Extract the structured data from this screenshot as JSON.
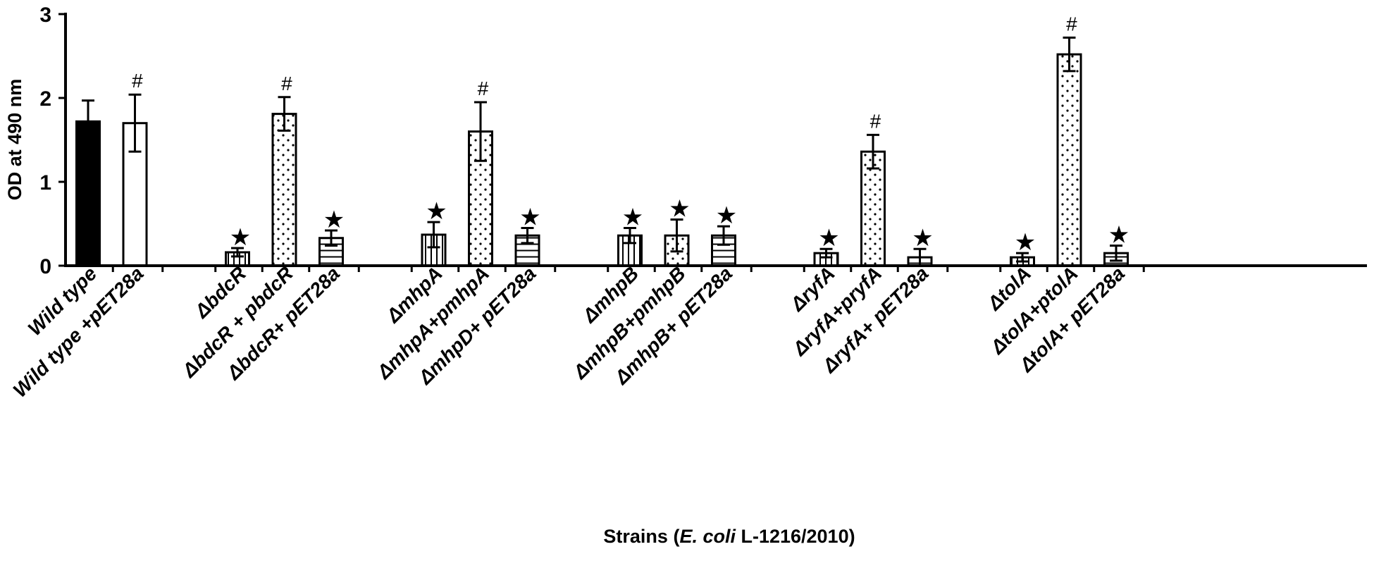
{
  "chart_data": {
    "type": "bar",
    "title": "",
    "ylabel": "OD at 490 nm",
    "xlabel_parts": [
      "Strains (",
      "E. coli",
      "  L-1216/2010)"
    ],
    "ylim": [
      0,
      3
    ],
    "yticks": [
      0,
      1,
      2,
      3
    ],
    "groups": [
      {
        "bars": [
          {
            "label": "Wild type",
            "value": 1.72,
            "error": 0.25,
            "fill": "solid",
            "mark": ""
          },
          {
            "label": "Wild type +pET28a",
            "value": 1.7,
            "error": 0.34,
            "fill": "white",
            "mark": "#"
          }
        ]
      },
      {
        "bars": [
          {
            "label": "ΔbdcR",
            "value": 0.16,
            "error": 0.05,
            "fill": "vertical",
            "mark": "★"
          },
          {
            "label": "ΔbdcR + pbdcR",
            "value": 1.81,
            "error": 0.2,
            "fill": "dots",
            "mark": "#"
          },
          {
            "label": "ΔbdcR+ pET28a",
            "value": 0.33,
            "error": 0.09,
            "fill": "horizontal",
            "mark": "★"
          }
        ]
      },
      {
        "bars": [
          {
            "label": "ΔmhpA",
            "value": 0.37,
            "error": 0.15,
            "fill": "vertical",
            "mark": "★"
          },
          {
            "label": "ΔmhpA+pmhpA",
            "value": 1.6,
            "error": 0.35,
            "fill": "dots",
            "mark": "#"
          },
          {
            "label": "ΔmhpD+ pET28a",
            "value": 0.36,
            "error": 0.09,
            "fill": "horizontal",
            "mark": "★"
          }
        ]
      },
      {
        "bars": [
          {
            "label": "ΔmhpB",
            "value": 0.36,
            "error": 0.09,
            "fill": "vertical",
            "mark": "★"
          },
          {
            "label": "ΔmhpB+pmhpB",
            "value": 0.36,
            "error": 0.19,
            "fill": "dots",
            "mark": "★"
          },
          {
            "label": "ΔmhpB+ pET28a",
            "value": 0.36,
            "error": 0.11,
            "fill": "horizontal",
            "mark": "★"
          }
        ]
      },
      {
        "bars": [
          {
            "label": "ΔryfA",
            "value": 0.15,
            "error": 0.05,
            "fill": "vertical",
            "mark": "★"
          },
          {
            "label": "ΔryfA+pryfA",
            "value": 1.36,
            "error": 0.2,
            "fill": "dots",
            "mark": "#"
          },
          {
            "label": "ΔryfA+ pET28a",
            "value": 0.1,
            "error": 0.1,
            "fill": "horizontal",
            "mark": "★"
          }
        ]
      },
      {
        "bars": [
          {
            "label": "ΔtolA",
            "value": 0.1,
            "error": 0.05,
            "fill": "vertical",
            "mark": "★"
          },
          {
            "label": "ΔtolA+ptolA",
            "value": 2.52,
            "error": 0.2,
            "fill": "dots",
            "mark": "#"
          },
          {
            "label": "ΔtolA+ pET28a",
            "value": 0.15,
            "error": 0.09,
            "fill": "horizontal",
            "mark": "★"
          }
        ]
      }
    ]
  }
}
